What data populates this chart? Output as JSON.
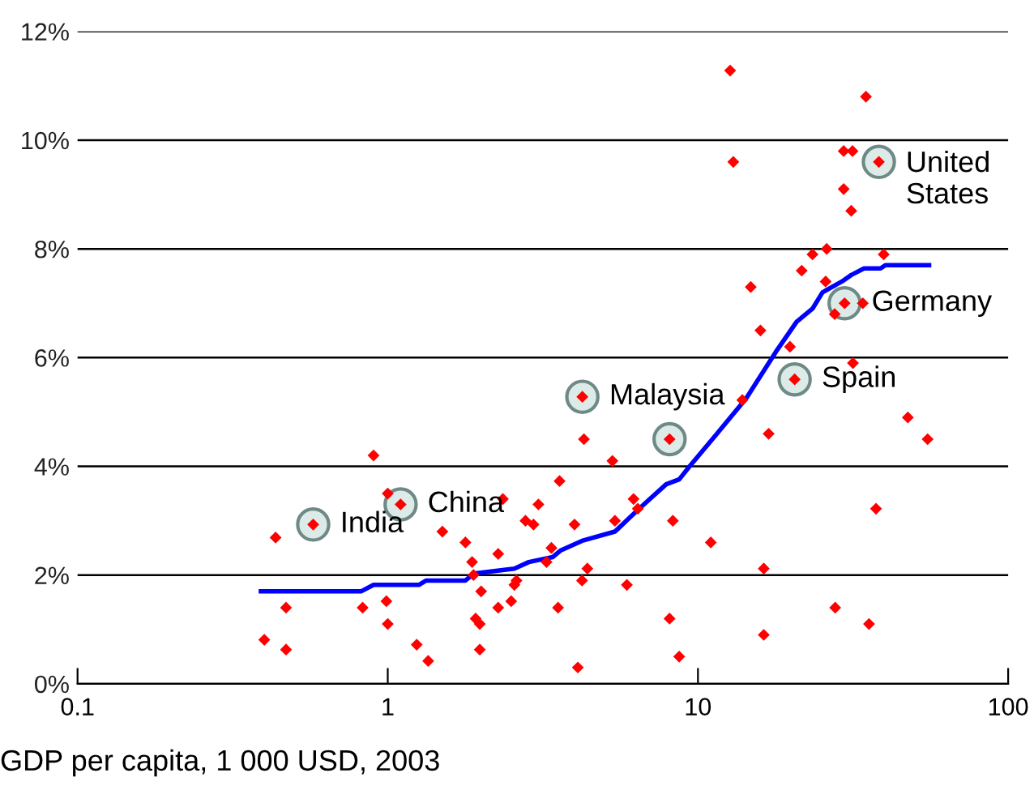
{
  "chart_data": {
    "type": "scatter",
    "xlabel": "GDP per capita, 1 000 USD, 2003",
    "log": "x",
    "grid": "y",
    "legend": false,
    "xlim": [
      0.1,
      100
    ],
    "xticks": [
      0.1,
      1,
      10,
      100
    ],
    "ylim": [
      0,
      12
    ],
    "yticks": [
      {
        "value": 0,
        "label": "0%"
      },
      {
        "value": 2,
        "label": "2%"
      },
      {
        "value": 4,
        "label": "4%"
      },
      {
        "value": 6,
        "label": "6%"
      },
      {
        "value": 8,
        "label": "8%"
      },
      {
        "value": 10,
        "label": "10%"
      },
      {
        "value": 12,
        "label": "12%"
      }
    ],
    "series": [
      {
        "marker": "circle",
        "color": "#dcebe8",
        "x": [
          0.575,
          1.1,
          4.24,
          8.1,
          20.5,
          29.7,
          38.3
        ],
        "values": [
          2.93,
          3.3,
          5.28,
          4.5,
          5.6,
          7.0,
          9.6
        ]
      },
      {
        "type": "line",
        "marker": "none",
        "color": "#0000ff",
        "x": [
          0.39,
          0.82,
          0.9,
          1.26,
          1.33,
          1.78,
          1.9,
          2.56,
          2.85,
          3.4,
          3.6,
          4.23,
          5.4,
          6.4,
          7.9,
          8.7,
          9.4,
          11.4,
          14.3,
          17.8,
          20.8,
          23.4,
          25.2,
          29.1,
          31.2,
          34.3,
          38.8,
          40.2,
          55.6
        ],
        "values": [
          1.7,
          1.7,
          1.82,
          1.82,
          1.9,
          1.9,
          2.03,
          2.12,
          2.24,
          2.33,
          2.45,
          2.63,
          2.8,
          3.2,
          3.67,
          3.76,
          4.0,
          4.57,
          5.25,
          6.1,
          6.66,
          6.9,
          7.2,
          7.4,
          7.52,
          7.64,
          7.64,
          7.7,
          7.7
        ]
      },
      {
        "marker": "diamond",
        "color": "#ff0000",
        "x": [
          0.4,
          0.435,
          0.47,
          0.47,
          0.575,
          0.9,
          1.0,
          1.1,
          0.83,
          0.99,
          1.0,
          1.24,
          1.35,
          1.5,
          1.78,
          1.87,
          1.89,
          2.0,
          1.92,
          1.98,
          1.98,
          2.27,
          2.35,
          2.27,
          2.5,
          2.56,
          2.6,
          2.78,
          2.95,
          3.06,
          3.25,
          3.37,
          4.29,
          5.3,
          4.24,
          8.1,
          16.9,
          55,
          3.58,
          4.0,
          3.54,
          4.4,
          4.23,
          4.1,
          5.4,
          6.2,
          6.4,
          5.9,
          8.3,
          8.1,
          8.7,
          11.0,
          16.3,
          16.3,
          27.7,
          35.6,
          37.5,
          12.7,
          34.8,
          13.0,
          29.5,
          31.5,
          38.3,
          29.5,
          31.2,
          26.0,
          23.4,
          39.7,
          21.6,
          25.8,
          14.8,
          29.7,
          34.0,
          27.6,
          15.9,
          19.8,
          31.6,
          20.5,
          13.9,
          47.5
        ],
        "values": [
          0.81,
          2.69,
          1.4,
          0.63,
          2.93,
          4.2,
          3.5,
          3.3,
          1.4,
          1.52,
          1.1,
          0.72,
          0.42,
          2.8,
          2.6,
          2.24,
          2.0,
          1.7,
          1.2,
          1.1,
          0.63,
          2.39,
          3.4,
          1.4,
          1.52,
          1.82,
          1.9,
          3.0,
          2.93,
          3.3,
          2.24,
          2.5,
          4.5,
          4.1,
          5.28,
          4.5,
          4.6,
          4.5,
          3.73,
          2.93,
          1.4,
          2.12,
          1.9,
          0.3,
          3.0,
          3.4,
          3.22,
          1.82,
          3.0,
          1.2,
          0.5,
          2.6,
          2.12,
          0.9,
          1.4,
          1.1,
          3.22,
          11.28,
          10.8,
          9.6,
          9.8,
          9.8,
          9.6,
          9.1,
          8.7,
          8.0,
          7.9,
          7.9,
          7.6,
          7.4,
          7.3,
          7.0,
          7.0,
          6.8,
          6.5,
          6.2,
          5.9,
          5.6,
          5.22,
          4.9
        ]
      }
    ],
    "annotations": [
      {
        "text": "India",
        "x": 0.575,
        "y": 2.93
      },
      {
        "text": "China",
        "x": 1.1,
        "y": 3.3
      },
      {
        "text": "Malaysia",
        "x": 4.24,
        "y": 5.28
      },
      {
        "text": "Spain",
        "x": 20.5,
        "y": 5.6
      },
      {
        "text": "Germany",
        "x": 29.7,
        "y": 7.0
      },
      {
        "text": "United\nStates",
        "x": 38.3,
        "y": 9.6
      }
    ]
  }
}
